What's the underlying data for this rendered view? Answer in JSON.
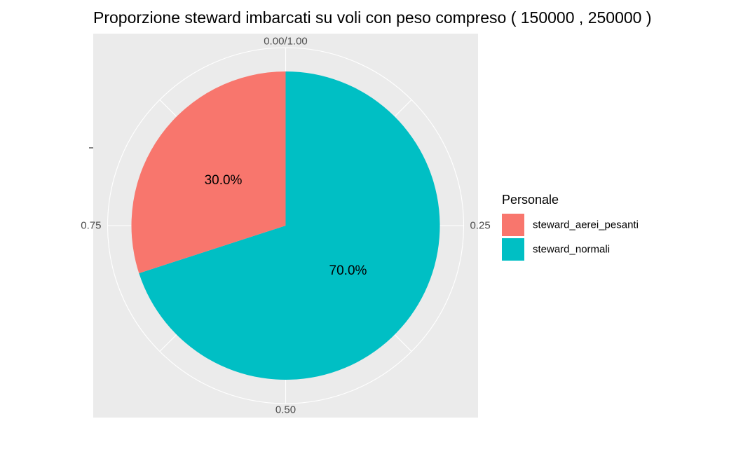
{
  "chart_data": {
    "type": "pie",
    "title": "Proporzione steward imbarcati su voli con peso compreso ( 150000 , 250000 )",
    "theta_ticks": [
      "0.00/1.00",
      "0.25",
      "0.50",
      "0.75"
    ],
    "legend": {
      "title": "Personale",
      "position": "right"
    },
    "slices": [
      {
        "name": "steward_aerei_pesanti",
        "value": 0.3,
        "label": "30.0%",
        "color": "#F8766D"
      },
      {
        "name": "steward_normali",
        "value": 0.7,
        "label": "70.0%",
        "color": "#00BFC4"
      }
    ],
    "panel_background": "#EBEBEB",
    "grid_color": "#FFFFFF"
  }
}
